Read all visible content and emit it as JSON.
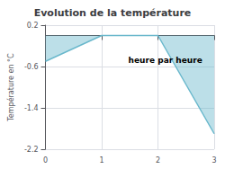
{
  "chart_data": {
    "type": "area",
    "title": "Evolution de la température",
    "ylabel": "Température en °C",
    "annotation": "heure par heure",
    "x": [
      0,
      1,
      2,
      3
    ],
    "values": [
      -0.5,
      0.0,
      0.0,
      -1.9
    ],
    "color": "#6ab8cc",
    "xlim": [
      0,
      3
    ],
    "xticks": [
      0,
      1,
      2,
      3
    ],
    "ylim": [
      -2.2,
      0.2
    ],
    "yticks": [
      0.2,
      -0.6,
      -1.4,
      -2.2
    ],
    "grid": true
  }
}
